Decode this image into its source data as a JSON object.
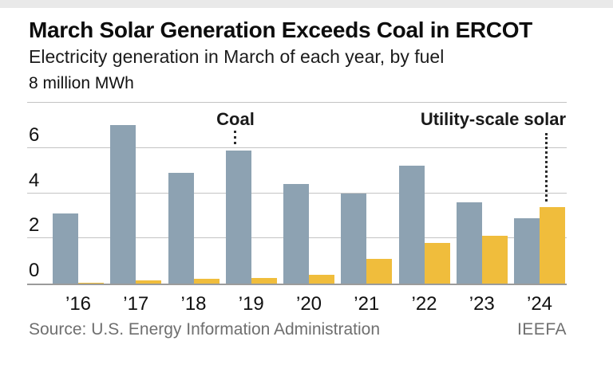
{
  "header": {
    "title": "March Solar Generation Exceeds Coal in ERCOT",
    "subtitle": "Electricity generation in March of each year, by fuel",
    "unit_label": "8 million MWh"
  },
  "annotations": {
    "coal_label": "Coal",
    "solar_label": "Utility-scale solar"
  },
  "footer": {
    "source": "Source: U.S. Energy Information Administration",
    "credit": "IEEFA"
  },
  "colors": {
    "coal": "#8DA2B2",
    "solar": "#F0BD3C",
    "gridline": "#c3c3c3",
    "axis": "#9b9b9b"
  },
  "chart_data": {
    "type": "bar",
    "title": "March Solar Generation Exceeds Coal in ERCOT",
    "subtitle": "Electricity generation in March of each year, by fuel",
    "unit": "million MWh",
    "categories": [
      "’16",
      "’17",
      "’18",
      "’19",
      "’20",
      "’21",
      "’22",
      "’23",
      "’24"
    ],
    "series": [
      {
        "name": "Coal",
        "color": "#8DA2B2",
        "values": [
          3.1,
          7.0,
          4.9,
          5.9,
          4.4,
          4.0,
          5.2,
          3.6,
          2.9
        ]
      },
      {
        "name": "Utility-scale solar",
        "color": "#F0BD3C",
        "values": [
          0.05,
          0.15,
          0.2,
          0.25,
          0.4,
          1.1,
          1.8,
          2.1,
          3.4
        ]
      }
    ],
    "ylim": [
      0,
      8
    ],
    "yticks": [
      0,
      2,
      4,
      6,
      8
    ],
    "grid": true,
    "legend_position": "none",
    "annotations": [
      {
        "text": "Coal",
        "points_to": "coal bar ’19"
      },
      {
        "text": "Utility-scale solar",
        "points_to": "solar bar ’24"
      }
    ]
  }
}
